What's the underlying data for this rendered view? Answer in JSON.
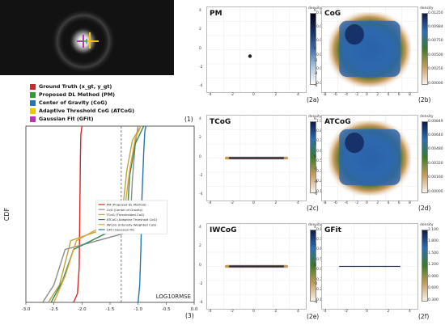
{
  "legend_top": [
    {
      "label": "Ground Truth (x_gt, y_gt)",
      "color": "#d62728"
    },
    {
      "label": "Proposed DL Method (PM)",
      "color": "#2ca02c"
    },
    {
      "label": "Center of Gravity (CoG)",
      "color": "#1f77b4"
    },
    {
      "label": "Adaptive Threshold CoG (ATCoG)",
      "color": "#f5c400"
    },
    {
      "label": "Gaussian Fit (GFit)",
      "color": "#c030c0"
    }
  ],
  "panel_labels": {
    "p1": "(1)",
    "p3": "(3)",
    "p2a": "(2a)",
    "p2b": "(2b)",
    "p2c": "(2c)",
    "p2d": "(2d)",
    "p2e": "(2e)",
    "p2f": "(2f)"
  },
  "subplots": {
    "pm": "PM",
    "cog": "CoG",
    "tcog": "TCoG",
    "atcog": "ATCoG",
    "iwcog": "IWCoG",
    "gfit": "GFit"
  },
  "colorbar_label": "density",
  "chart_data": [
    {
      "type": "line",
      "ylabel": "CDF",
      "xlabel": "LOG10RMSE",
      "xlim": [
        -3.0,
        0.0
      ],
      "ylim": [
        0,
        1
      ],
      "xticks": [
        "-3.0",
        "-2.5",
        "-2.0",
        "-1.5",
        "-1.0",
        "-0.5",
        "0.0"
      ],
      "reference_line_x": -1.3,
      "series": [
        {
          "name": "PM (Proposed DL Method)",
          "color": "#d62728",
          "x": [
            -2.15,
            -2.08,
            -2.05,
            -2.04,
            -2.03,
            -2.02,
            -2.0
          ],
          "y": [
            0,
            0.05,
            0.2,
            0.5,
            0.8,
            0.95,
            1.0
          ]
        },
        {
          "name": "CoG (Center of Gravity)",
          "color": "#8c8c8c",
          "x": [
            -2.7,
            -2.5,
            -2.3,
            -1.15,
            -1.1,
            -1.05,
            -1.0
          ],
          "y": [
            0,
            0.1,
            0.3,
            0.4,
            0.7,
            0.9,
            1.0
          ]
        },
        {
          "name": "TCoG (Thresholded CoG)",
          "color": "#b5a642",
          "x": [
            -2.6,
            -2.4,
            -2.2,
            -1.3,
            -1.2,
            -1.1,
            -0.95
          ],
          "y": [
            0,
            0.1,
            0.35,
            0.45,
            0.75,
            0.92,
            1.0
          ]
        },
        {
          "name": "ATCoG (Adaptive Threshold CoG)",
          "color": "#2e8b57",
          "x": [
            -2.55,
            -2.35,
            -2.15,
            -1.2,
            -1.15,
            -1.05,
            -0.9
          ],
          "y": [
            0,
            0.12,
            0.3,
            0.45,
            0.72,
            0.9,
            1.0
          ]
        },
        {
          "name": "IWCoG (Intensity Weighted CoG)",
          "color": "#e0a030",
          "x": [
            -2.5,
            -2.3,
            -2.1,
            -1.25,
            -1.15,
            -1.05,
            -0.95
          ],
          "y": [
            0,
            0.15,
            0.35,
            0.5,
            0.75,
            0.93,
            1.0
          ]
        },
        {
          "name": "GFit (Gaussian Fit)",
          "color": "#1f77b4",
          "x": [
            -1.0,
            -0.97,
            -0.95,
            -0.93,
            -0.9,
            -0.88,
            -0.86
          ],
          "y": [
            0,
            0.1,
            0.3,
            0.6,
            0.85,
            0.97,
            1.0
          ]
        }
      ]
    }
  ],
  "colorbar_ticks": {
    "pm": [
      "0.10",
      "0.08",
      "0.06",
      "0.04",
      "0.02",
      "0.00"
    ],
    "cog": [
      "0.01250",
      "0.00984",
      "0.00750",
      "0.00500",
      "0.00250",
      "0.00000"
    ],
    "tcog": [
      "1.000",
      "0.875",
      "0.750",
      "0.625",
      "0.500",
      "0.375",
      "0.250",
      "0.125"
    ],
    "atcog": [
      "0.00849",
      "0.00640",
      "0.00480",
      "0.00320",
      "0.00160",
      "0.00000"
    ],
    "iwcog": [
      "0.8400",
      "0.7350",
      "0.6300",
      "0.5250",
      "0.4200",
      "0.3150",
      "0.2100",
      "0.1050"
    ],
    "gfit": [
      "2.100",
      "1.800",
      "1.500",
      "1.200",
      "0.900",
      "0.600",
      "0.300"
    ]
  },
  "axis_ticks": {
    "small_x": [
      "-4",
      "-2",
      "0",
      "2",
      "4"
    ],
    "small_y": [
      "4",
      "2",
      "0",
      "-2",
      "-4"
    ],
    "cog_x": [
      "-8",
      "-6",
      "-4",
      "-2",
      "0",
      "2",
      "4",
      "6",
      "8"
    ],
    "cog_y": [
      "6",
      "4",
      "2",
      "0",
      "-2",
      "-4",
      "-6"
    ]
  }
}
